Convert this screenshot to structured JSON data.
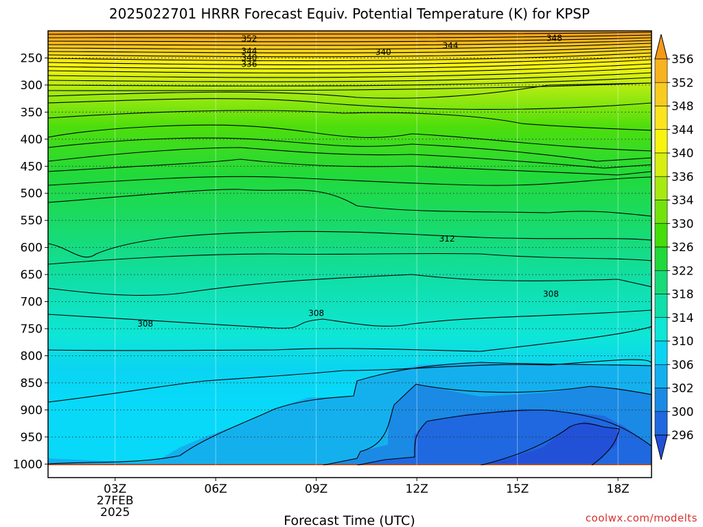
{
  "chart_data": {
    "type": "heatmap",
    "title": "2025022701 HRRR Forecast Equiv. Potential Temperature (K) for KPSP",
    "xlabel": "Forecast Time (UTC)",
    "ylabel": "",
    "x_ticks": [
      {
        "hour": 3,
        "lines": [
          "03Z",
          "27FEB",
          "2025"
        ]
      },
      {
        "hour": 6,
        "lines": [
          "06Z"
        ]
      },
      {
        "hour": 9,
        "lines": [
          "09Z"
        ]
      },
      {
        "hour": 12,
        "lines": [
          "12Z"
        ]
      },
      {
        "hour": 15,
        "lines": [
          "15Z"
        ]
      },
      {
        "hour": 18,
        "lines": [
          "18Z"
        ]
      }
    ],
    "xlim": [
      1,
      19
    ],
    "y_ticks": [
      250,
      300,
      350,
      400,
      450,
      500,
      550,
      600,
      650,
      700,
      750,
      800,
      850,
      900,
      950,
      1000
    ],
    "ylim": [
      1025,
      200
    ],
    "colorbar": {
      "labels": [
        356,
        352,
        348,
        344,
        340,
        336,
        334,
        330,
        326,
        322,
        318,
        314,
        310,
        306,
        302,
        300,
        296
      ],
      "colors": [
        "#f49a1a",
        "#f7b21e",
        "#f9cb20",
        "#fbe41e",
        "#f7f40f",
        "#d6ee12",
        "#a6ea10",
        "#74e30c",
        "#46dd0c",
        "#21d93a",
        "#16db78",
        "#10dfaa",
        "#0ee6d6",
        "#0bd4f2",
        "#14b0ee",
        "#1a8ae4",
        "#1f68e0",
        "#2251d8"
      ]
    },
    "contour_labels": [
      {
        "text": "352",
        "hour": 7.0,
        "p": 213
      },
      {
        "text": "348",
        "hour": 16.1,
        "p": 212
      },
      {
        "text": "344",
        "hour": 13.0,
        "p": 226
      },
      {
        "text": "340",
        "hour": 11.0,
        "p": 238
      },
      {
        "text": "344",
        "hour": 7.0,
        "p": 236
      },
      {
        "text": "340",
        "hour": 7.0,
        "p": 248
      },
      {
        "text": "336",
        "hour": 7.0,
        "p": 260
      },
      {
        "text": "312",
        "hour": 12.9,
        "p": 583
      },
      {
        "text": "308",
        "hour": 16.0,
        "p": 685
      },
      {
        "text": "308",
        "hour": 9.0,
        "p": 720
      },
      {
        "text": "308",
        "hour": 3.9,
        "p": 740
      }
    ],
    "watermark": "coolwx.com/modelts"
  }
}
